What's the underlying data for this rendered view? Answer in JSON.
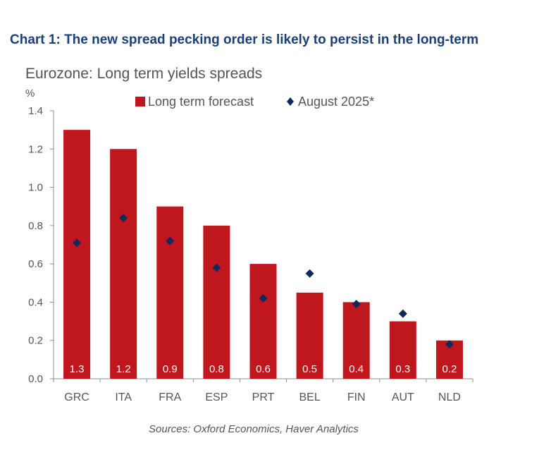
{
  "header": {
    "title": "Chart 1: The new spread pecking order is likely to persist in the long-term"
  },
  "footer": {
    "source": "Sources: Oxford Economics, Haver Analytics"
  },
  "colors": {
    "bar": "#c0171f",
    "marker": "#0e2a5c",
    "axis": "#8c8c8c",
    "text": "#555555",
    "header": "#1c3f78",
    "bar_label": "#ffffff"
  },
  "chart_data": {
    "type": "bar",
    "title": "Eurozone: Long term yields spreads",
    "ylabel": "%",
    "xlabel": "",
    "ylim": [
      0,
      1.4
    ],
    "yticks": [
      "0.0",
      "0.2",
      "0.4",
      "0.6",
      "0.8",
      "1.0",
      "1.2",
      "1.4"
    ],
    "grid": false,
    "legend_position": "top",
    "categories": [
      "GRC",
      "ITA",
      "FRA",
      "ESP",
      "PRT",
      "BEL",
      "FIN",
      "AUT",
      "NLD"
    ],
    "series": [
      {
        "name": "Long term forecast",
        "kind": "bar",
        "values": [
          1.3,
          1.2,
          0.9,
          0.8,
          0.6,
          0.45,
          0.4,
          0.3,
          0.2
        ],
        "labels": [
          "1.3",
          "1.2",
          "0.9",
          "0.8",
          "0.6",
          "0.5",
          "0.4",
          "0.3",
          "0.2"
        ]
      },
      {
        "name": "August 2025*",
        "kind": "marker",
        "values": [
          0.71,
          0.84,
          0.72,
          0.58,
          0.42,
          0.55,
          0.39,
          0.34,
          0.18
        ]
      }
    ]
  }
}
